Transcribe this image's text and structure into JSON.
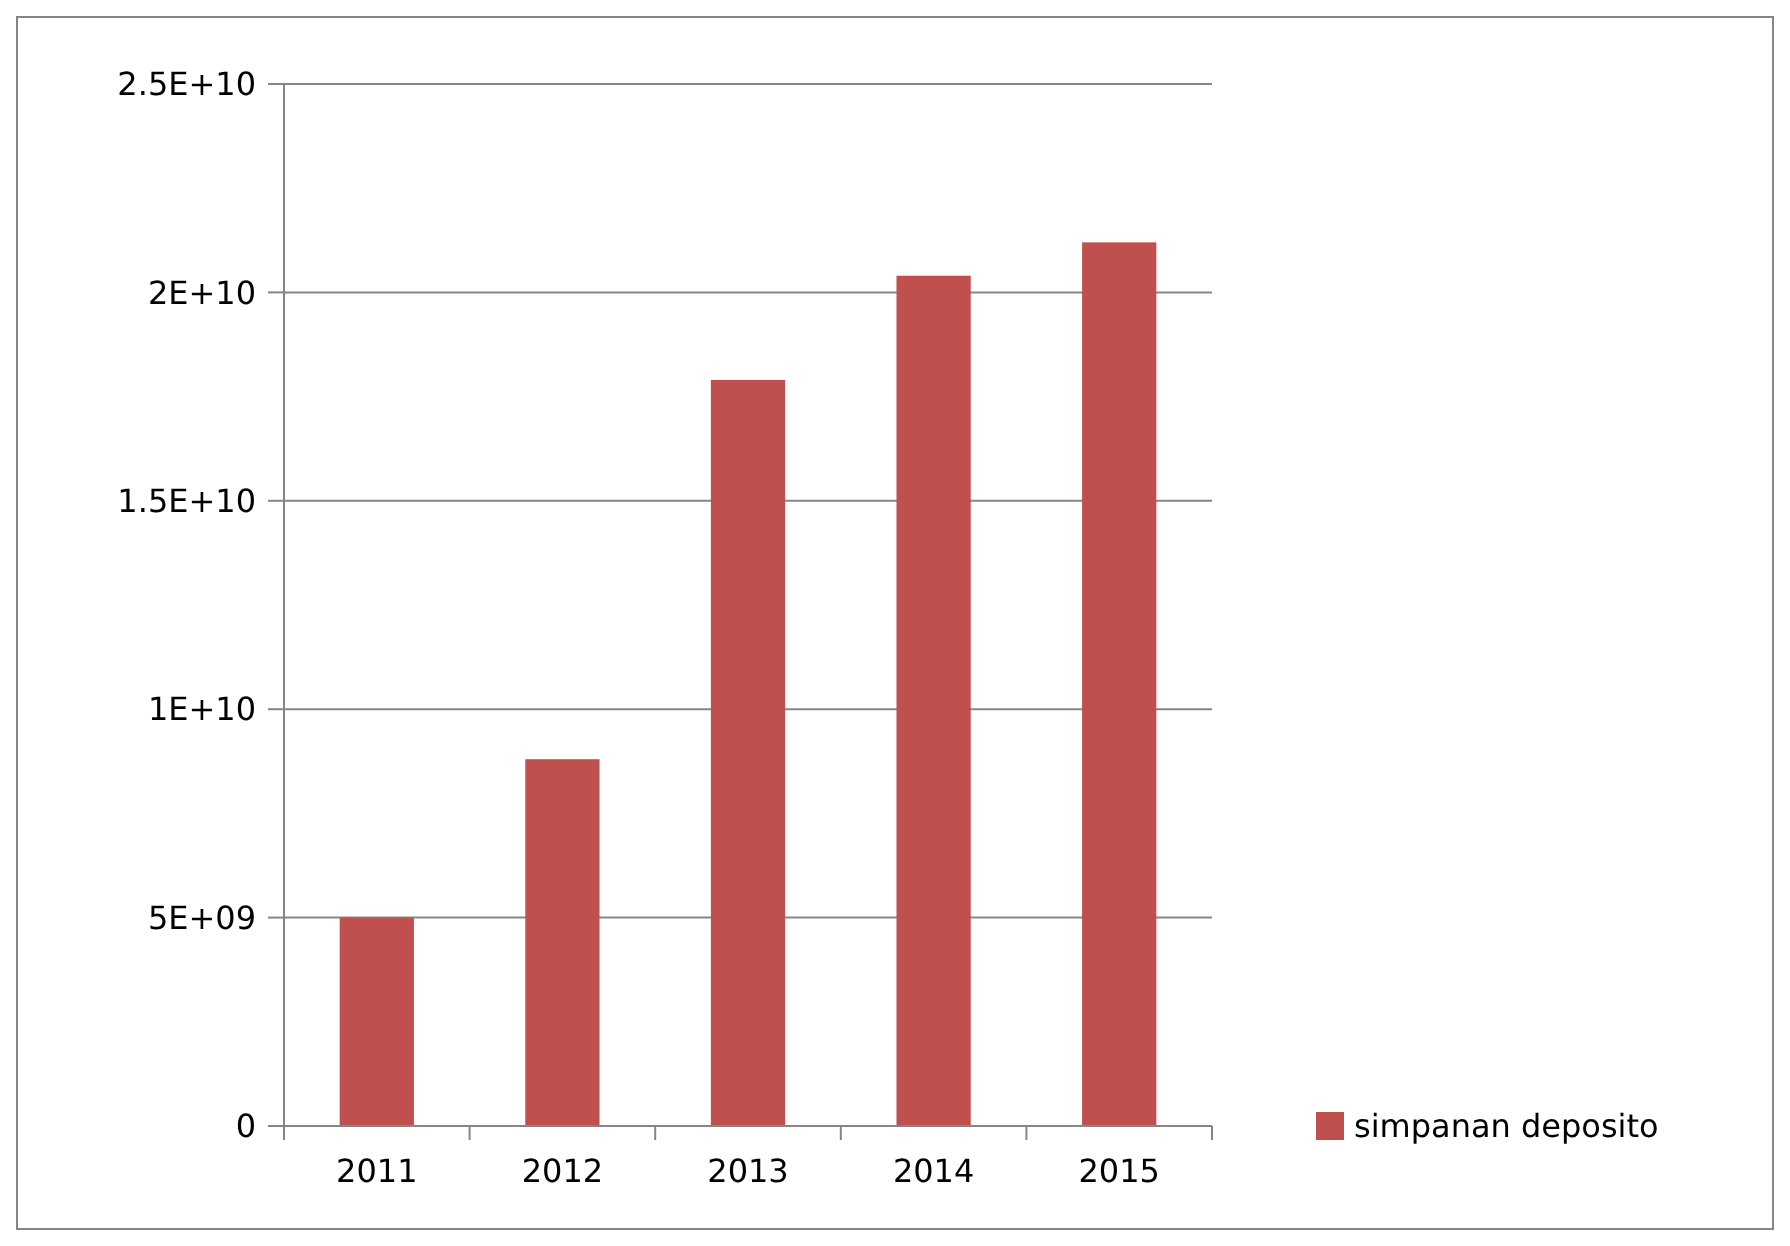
{
  "chart_data": {
    "type": "bar",
    "categories": [
      "2011",
      "2012",
      "2013",
      "2014",
      "2015"
    ],
    "series": [
      {
        "name": "simpanan deposito",
        "color": "#c0504d",
        "values": [
          5000000000.0,
          8800000000.0,
          17900000000.0,
          20400000000.0,
          21200000000.0
        ]
      }
    ],
    "ylim": [
      0,
      25000000000.0
    ],
    "yticks": [
      0,
      {
        "value": 5000000000.0,
        "label": "5E+09"
      },
      {
        "value": 10000000000.0,
        "label": "1E+10"
      },
      {
        "value": 15000000000.0,
        "label": "1.5E+10"
      },
      {
        "value": 20000000000.0,
        "label": "2E+10"
      },
      {
        "value": 25000000000.0,
        "label": "2.5E+10"
      }
    ],
    "grid": "y",
    "legend": "right"
  }
}
